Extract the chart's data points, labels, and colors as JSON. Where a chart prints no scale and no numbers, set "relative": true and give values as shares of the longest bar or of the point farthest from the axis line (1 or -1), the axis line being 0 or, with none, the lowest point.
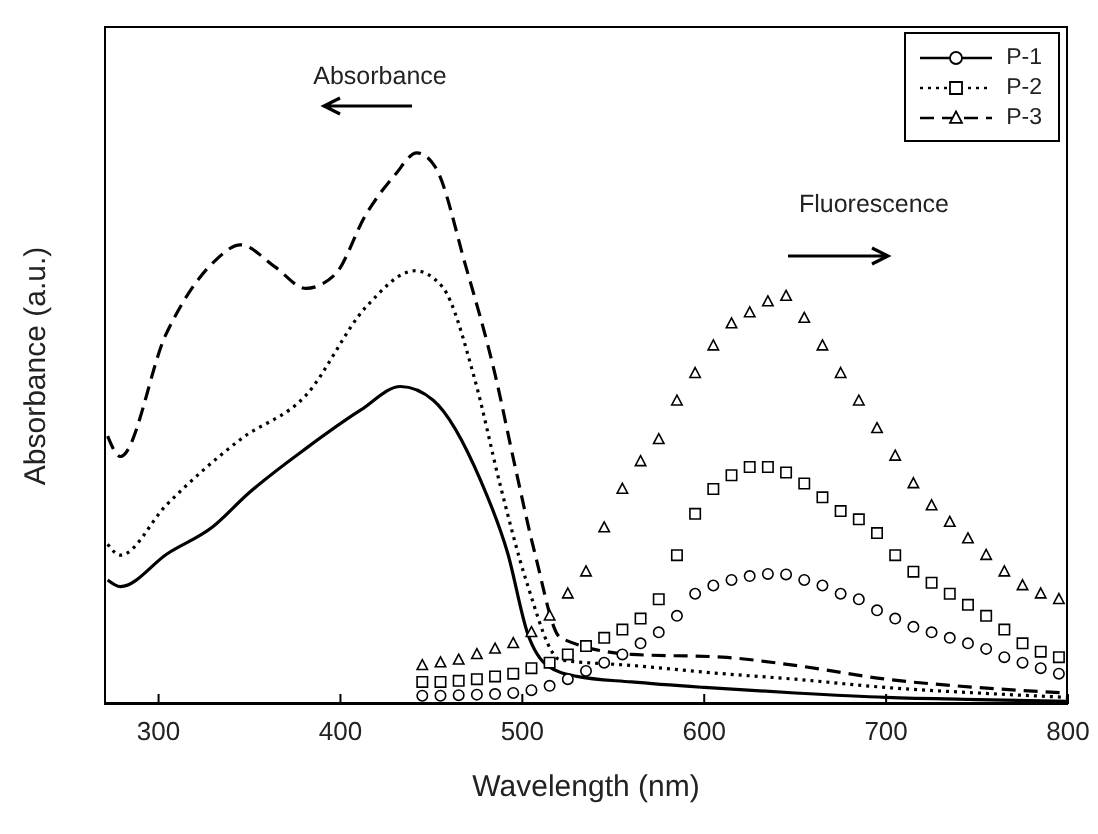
{
  "chart_data": {
    "type": "line",
    "relative": true,
    "xlabel": "Wavelength (nm)",
    "ylabel": "Absorbance (a.u.)",
    "xlim": [
      270,
      800
    ],
    "xticks": [
      300,
      400,
      500,
      600,
      700,
      800
    ],
    "legend": "top right",
    "annotations": [
      "Absorbance",
      "Fluorescence"
    ],
    "series": [
      {
        "name": "P-1",
        "line_style": "solid",
        "color": "#000000",
        "x": [
          272,
          279,
          305,
          330,
          349,
          382,
          411,
          433,
          451,
          477,
          492,
          503,
          514,
          530,
          560,
          600,
          650,
          700,
          750,
          800
        ],
        "values": [
          0.225,
          0.213,
          0.273,
          0.322,
          0.381,
          0.466,
          0.533,
          0.576,
          0.551,
          0.406,
          0.273,
          0.127,
          0.069,
          0.05,
          0.04,
          0.03,
          0.02,
          0.012,
          0.008,
          0.005
        ]
      },
      {
        "name": "P-2",
        "line_style": "dotted",
        "color": "#000000",
        "x": [
          272,
          279,
          304,
          345,
          381,
          414,
          441,
          456,
          474,
          488,
          502,
          521,
          560,
          610,
          650,
          700,
          750,
          800
        ],
        "values": [
          0.29,
          0.27,
          0.36,
          0.48,
          0.56,
          0.72,
          0.786,
          0.757,
          0.587,
          0.395,
          0.225,
          0.08,
          0.07,
          0.055,
          0.045,
          0.03,
          0.02,
          0.012
        ]
      },
      {
        "name": "P-3",
        "line_style": "dashed",
        "color": "#000000",
        "x": [
          272,
          279,
          304,
          331,
          345,
          364,
          381,
          397,
          414,
          430,
          442,
          452,
          469,
          485,
          496,
          507,
          521,
          560,
          610,
          650,
          700,
          750,
          800
        ],
        "values": [
          0.486,
          0.449,
          0.67,
          0.804,
          0.833,
          0.793,
          0.754,
          0.779,
          0.888,
          0.96,
          1.0,
          0.975,
          0.793,
          0.598,
          0.431,
          0.272,
          0.12,
          0.09,
          0.085,
          0.07,
          0.045,
          0.03,
          0.02
        ]
      },
      {
        "type": "scatter",
        "marker": "circle",
        "color": "#000000",
        "x": [
          445,
          455,
          465,
          475,
          485,
          495,
          505,
          515,
          525,
          535,
          545,
          555,
          565,
          575,
          585,
          595,
          605,
          615,
          625,
          635,
          645,
          655,
          665,
          675,
          685,
          695,
          705,
          715,
          725,
          735,
          745,
          755,
          765,
          775,
          785,
          795
        ],
        "values": [
          0.015,
          0.015,
          0.016,
          0.017,
          0.018,
          0.02,
          0.025,
          0.033,
          0.045,
          0.06,
          0.075,
          0.09,
          0.11,
          0.13,
          0.16,
          0.2,
          0.215,
          0.225,
          0.232,
          0.236,
          0.235,
          0.225,
          0.215,
          0.2,
          0.19,
          0.17,
          0.155,
          0.14,
          0.13,
          0.12,
          0.11,
          0.1,
          0.085,
          0.075,
          0.065,
          0.055
        ]
      },
      {
        "type": "scatter",
        "marker": "square",
        "color": "#000000",
        "x": [
          445,
          455,
          465,
          475,
          485,
          495,
          505,
          515,
          525,
          535,
          545,
          555,
          565,
          575,
          585,
          595,
          605,
          615,
          625,
          635,
          645,
          655,
          665,
          675,
          685,
          695,
          705,
          715,
          725,
          735,
          745,
          755,
          765,
          775,
          785,
          795
        ],
        "values": [
          0.04,
          0.04,
          0.042,
          0.045,
          0.05,
          0.055,
          0.065,
          0.075,
          0.09,
          0.105,
          0.12,
          0.135,
          0.155,
          0.19,
          0.27,
          0.345,
          0.39,
          0.415,
          0.43,
          0.43,
          0.42,
          0.4,
          0.375,
          0.35,
          0.335,
          0.31,
          0.27,
          0.24,
          0.22,
          0.2,
          0.18,
          0.16,
          0.135,
          0.11,
          0.095,
          0.085
        ]
      },
      {
        "type": "scatter",
        "marker": "triangle",
        "color": "#000000",
        "x": [
          445,
          455,
          465,
          475,
          485,
          495,
          505,
          515,
          525,
          535,
          545,
          555,
          565,
          575,
          585,
          595,
          605,
          615,
          625,
          635,
          645,
          655,
          665,
          675,
          685,
          695,
          705,
          715,
          725,
          735,
          745,
          755,
          765,
          775,
          785,
          795
        ],
        "values": [
          0.07,
          0.075,
          0.08,
          0.09,
          0.1,
          0.11,
          0.13,
          0.16,
          0.2,
          0.24,
          0.32,
          0.39,
          0.44,
          0.48,
          0.55,
          0.6,
          0.65,
          0.69,
          0.71,
          0.73,
          0.74,
          0.7,
          0.65,
          0.6,
          0.55,
          0.5,
          0.45,
          0.4,
          0.36,
          0.33,
          0.3,
          0.27,
          0.24,
          0.215,
          0.2,
          0.19
        ]
      }
    ]
  }
}
